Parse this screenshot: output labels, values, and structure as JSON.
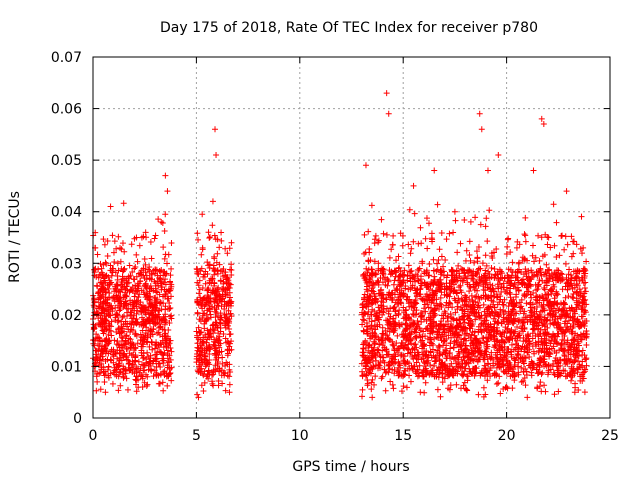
{
  "chart_data": {
    "type": "scatter",
    "title": "Day 175 of 2018, Rate Of TEC Index for receiver p780",
    "xlabel": "GPS time / hours",
    "ylabel": "ROTI / TECUs",
    "xlim": [
      0,
      25
    ],
    "ylim": [
      0,
      0.07
    ],
    "xticks": [
      0,
      5,
      10,
      15,
      20,
      25
    ],
    "xtick_labels": [
      "0",
      "5",
      "10",
      "15",
      "20",
      "25"
    ],
    "yticks": [
      0,
      0.01,
      0.02,
      0.03,
      0.04,
      0.05,
      0.06,
      0.07
    ],
    "ytick_labels": [
      "0",
      "0.01",
      "0.02",
      "0.03",
      "0.04",
      "0.05",
      "0.06",
      "0.07"
    ],
    "grid": true,
    "marker": "plus",
    "marker_color": "#ff0000",
    "series": [
      {
        "name": "ROTI",
        "segments": [
          {
            "start": 0.0,
            "end": 3.8
          },
          {
            "start": 5.0,
            "end": 6.7
          },
          {
            "start": 13.0,
            "end": 23.9
          }
        ],
        "points": [
          {
            "x": 0.1,
            "y": 0.033
          },
          {
            "x": 0.2,
            "y": 0.007
          },
          {
            "x": 0.4,
            "y": 0.025
          },
          {
            "x": 0.6,
            "y": 0.005
          },
          {
            "x": 0.8,
            "y": 0.018
          },
          {
            "x": 0.85,
            "y": 0.041
          },
          {
            "x": 1.0,
            "y": 0.012
          },
          {
            "x": 1.2,
            "y": 0.03
          },
          {
            "x": 1.5,
            "y": 0.008
          },
          {
            "x": 1.8,
            "y": 0.022
          },
          {
            "x": 2.1,
            "y": 0.035
          },
          {
            "x": 2.4,
            "y": 0.006
          },
          {
            "x": 2.7,
            "y": 0.019
          },
          {
            "x": 3.0,
            "y": 0.028
          },
          {
            "x": 3.3,
            "y": 0.038
          },
          {
            "x": 3.5,
            "y": 0.047
          },
          {
            "x": 3.6,
            "y": 0.044
          },
          {
            "x": 3.7,
            "y": 0.015
          },
          {
            "x": 5.1,
            "y": 0.004
          },
          {
            "x": 5.3,
            "y": 0.033
          },
          {
            "x": 5.5,
            "y": 0.02
          },
          {
            "x": 5.8,
            "y": 0.042
          },
          {
            "x": 5.9,
            "y": 0.056
          },
          {
            "x": 5.95,
            "y": 0.051
          },
          {
            "x": 6.1,
            "y": 0.009
          },
          {
            "x": 6.3,
            "y": 0.026
          },
          {
            "x": 6.6,
            "y": 0.005
          },
          {
            "x": 13.2,
            "y": 0.049
          },
          {
            "x": 13.5,
            "y": 0.004
          },
          {
            "x": 13.8,
            "y": 0.03
          },
          {
            "x": 14.2,
            "y": 0.063
          },
          {
            "x": 14.3,
            "y": 0.059
          },
          {
            "x": 14.8,
            "y": 0.018
          },
          {
            "x": 15.5,
            "y": 0.045
          },
          {
            "x": 16.0,
            "y": 0.008
          },
          {
            "x": 16.5,
            "y": 0.048
          },
          {
            "x": 17.0,
            "y": 0.025
          },
          {
            "x": 17.5,
            "y": 0.04
          },
          {
            "x": 18.0,
            "y": 0.012
          },
          {
            "x": 18.7,
            "y": 0.059
          },
          {
            "x": 18.8,
            "y": 0.056
          },
          {
            "x": 19.1,
            "y": 0.048
          },
          {
            "x": 19.6,
            "y": 0.051
          },
          {
            "x": 20.0,
            "y": 0.006
          },
          {
            "x": 20.5,
            "y": 0.033
          },
          {
            "x": 21.0,
            "y": 0.004
          },
          {
            "x": 21.3,
            "y": 0.048
          },
          {
            "x": 21.7,
            "y": 0.058
          },
          {
            "x": 21.8,
            "y": 0.057
          },
          {
            "x": 22.5,
            "y": 0.018
          },
          {
            "x": 22.9,
            "y": 0.044
          },
          {
            "x": 23.3,
            "y": 0.005
          },
          {
            "x": 23.7,
            "y": 0.033
          }
        ]
      }
    ]
  }
}
